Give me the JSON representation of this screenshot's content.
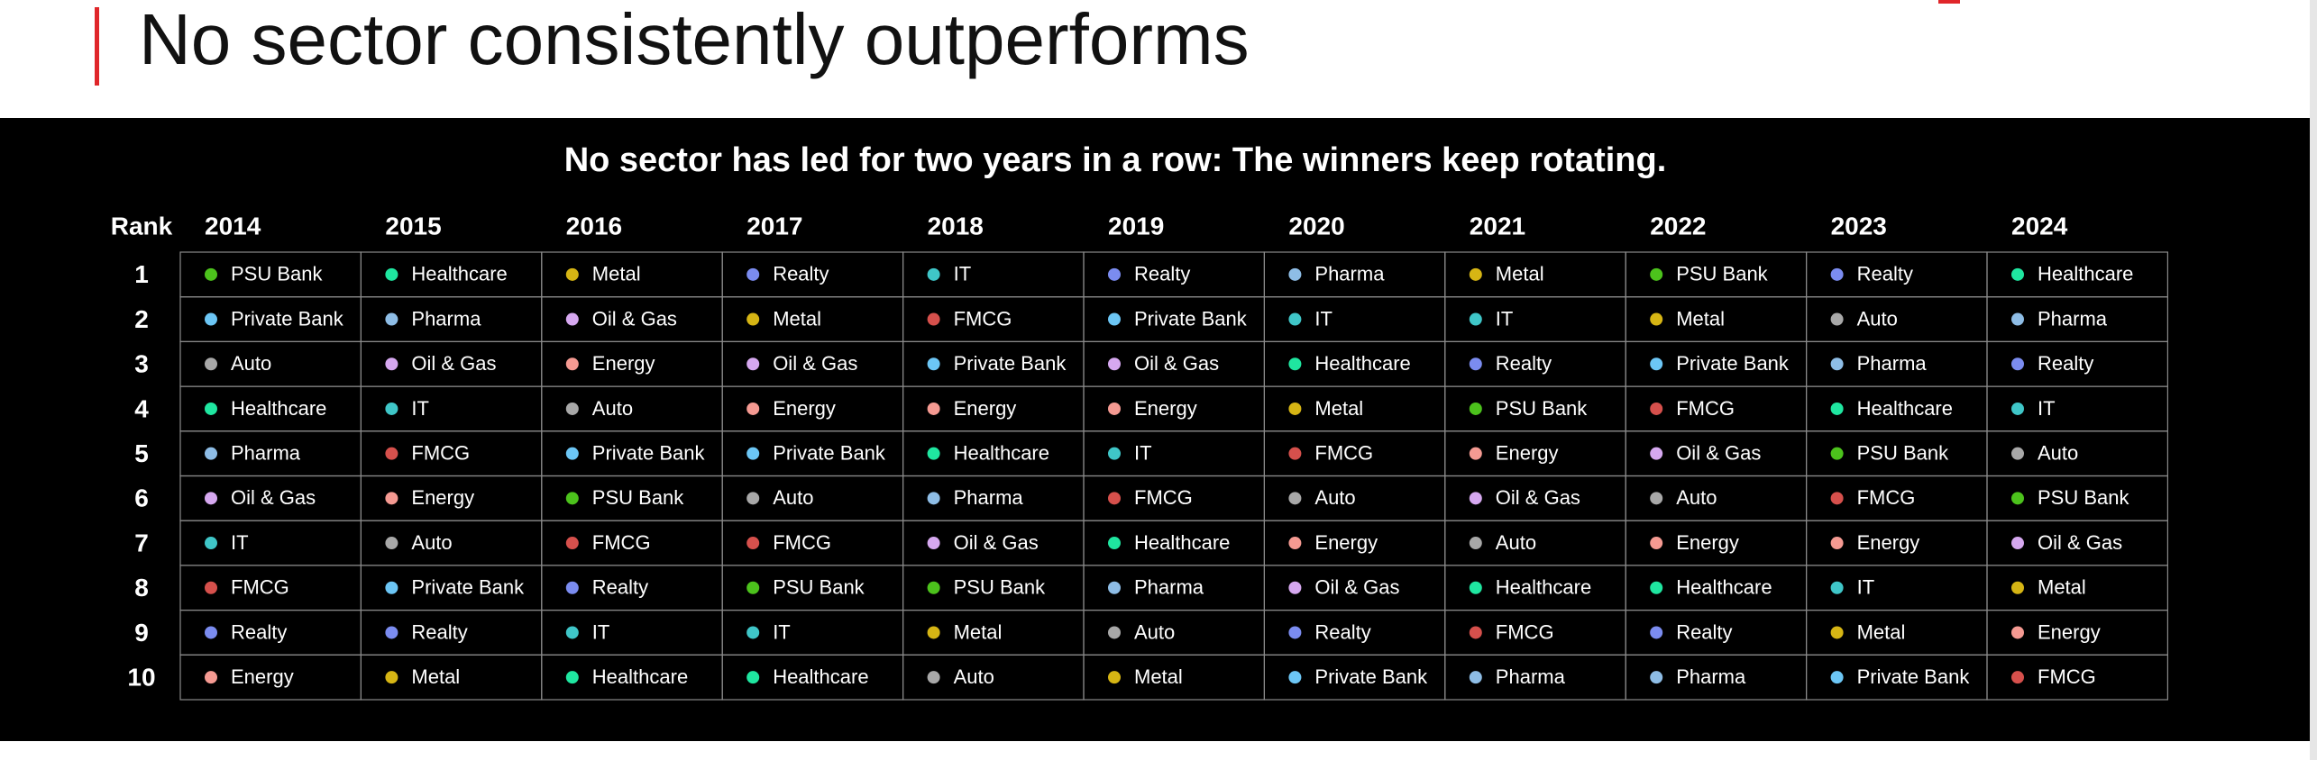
{
  "header": {
    "title": "No sector consistently outperforms"
  },
  "table": {
    "title": "No sector has led for two years in a row: The winners keep rotating.",
    "rank_header": "Rank",
    "ranks": [
      1,
      2,
      3,
      4,
      5,
      6,
      7,
      8,
      9,
      10
    ],
    "sector_colors": {
      "PSU Bank": "#4cc21c",
      "Healthcare": "#1fe6a0",
      "Metal": "#d6b514",
      "Realty": "#7b8cf0",
      "IT": "#3fc6c8",
      "Pharma": "#8ebde6",
      "Private Bank": "#6cc6f5",
      "Oil & Gas": "#d6a8f0",
      "FMCG": "#d6504c",
      "Energy": "#f59a92",
      "Auto": "#a8a8a8"
    },
    "columns": [
      {
        "year": "2014",
        "sectors": [
          "PSU Bank",
          "Private Bank",
          "Auto",
          "Healthcare",
          "Pharma",
          "Oil & Gas",
          "IT",
          "FMCG",
          "Realty",
          "Energy"
        ]
      },
      {
        "year": "2015",
        "sectors": [
          "Healthcare",
          "Pharma",
          "Oil & Gas",
          "IT",
          "FMCG",
          "Energy",
          "Auto",
          "Private Bank",
          "Realty",
          "Metal"
        ]
      },
      {
        "year": "2016",
        "sectors": [
          "Metal",
          "Oil & Gas",
          "Energy",
          "Auto",
          "Private Bank",
          "PSU Bank",
          "FMCG",
          "Realty",
          "IT",
          "Healthcare"
        ]
      },
      {
        "year": "2017",
        "sectors": [
          "Realty",
          "Metal",
          "Oil & Gas",
          "Energy",
          "Private Bank",
          "Auto",
          "FMCG",
          "PSU Bank",
          "IT",
          "Healthcare"
        ]
      },
      {
        "year": "2018",
        "sectors": [
          "IT",
          "FMCG",
          "Private Bank",
          "Energy",
          "Healthcare",
          "Pharma",
          "Oil & Gas",
          "PSU Bank",
          "Metal",
          "Auto"
        ]
      },
      {
        "year": "2019",
        "sectors": [
          "Realty",
          "Private Bank",
          "Oil & Gas",
          "Energy",
          "IT",
          "FMCG",
          "Healthcare",
          "Pharma",
          "Auto",
          "Metal"
        ]
      },
      {
        "year": "2020",
        "sectors": [
          "Pharma",
          "IT",
          "Healthcare",
          "Metal",
          "FMCG",
          "Auto",
          "Energy",
          "Oil & Gas",
          "Realty",
          "Private Bank"
        ]
      },
      {
        "year": "2021",
        "sectors": [
          "Metal",
          "IT",
          "Realty",
          "PSU Bank",
          "Energy",
          "Oil & Gas",
          "Auto",
          "Healthcare",
          "FMCG",
          "Pharma"
        ]
      },
      {
        "year": "2022",
        "sectors": [
          "PSU Bank",
          "Metal",
          "Private Bank",
          "FMCG",
          "Oil & Gas",
          "Auto",
          "Energy",
          "Healthcare",
          "Realty",
          "Pharma"
        ]
      },
      {
        "year": "2023",
        "sectors": [
          "Realty",
          "Auto",
          "Pharma",
          "Healthcare",
          "PSU Bank",
          "FMCG",
          "Energy",
          "IT",
          "Metal",
          "Private Bank"
        ]
      },
      {
        "year": "2024",
        "sectors": [
          "Healthcare",
          "Pharma",
          "Realty",
          "IT",
          "Auto",
          "PSU Bank",
          "Oil & Gas",
          "Metal",
          "Energy",
          "FMCG"
        ]
      }
    ]
  }
}
